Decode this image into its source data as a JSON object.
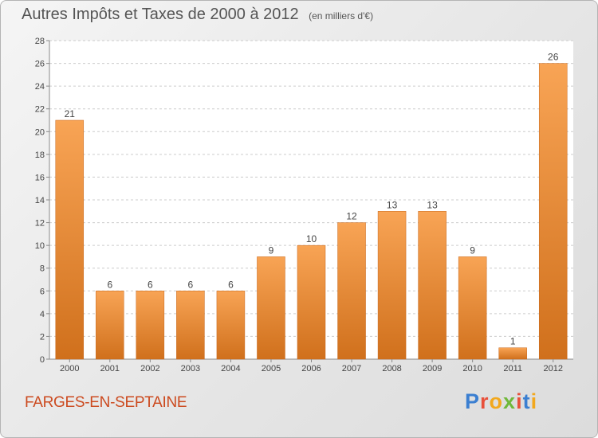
{
  "header": {
    "title": "Autres Impôts et Taxes de 2000 à 2012",
    "subtitle": "(en milliers d'€)"
  },
  "footer": {
    "location": "FARGES-EN-SEPTAINE",
    "brand_letters": [
      "P",
      "r",
      "o",
      "x",
      "i",
      "t",
      "i"
    ],
    "brand_colors": [
      "#3b7fd1",
      "#e8503a",
      "#f2a81d",
      "#6fb83b",
      "#e8503a",
      "#3b7fd1",
      "#f2a81d"
    ]
  },
  "chart_data": {
    "type": "bar",
    "categories": [
      "2000",
      "2001",
      "2002",
      "2003",
      "2004",
      "2005",
      "2006",
      "2007",
      "2008",
      "2009",
      "2010",
      "2011",
      "2012"
    ],
    "values": [
      21,
      6,
      6,
      6,
      6,
      9,
      10,
      12,
      13,
      13,
      9,
      1,
      26
    ],
    "title": "Autres Impôts et Taxes de 2000 à 2012",
    "subtitle": "(en milliers d'€)",
    "xlabel": "",
    "ylabel": "",
    "ylim": [
      0,
      28
    ],
    "yticks": [
      0,
      2,
      4,
      6,
      8,
      10,
      12,
      14,
      16,
      18,
      20,
      22,
      24,
      26,
      28
    ],
    "grid": "horizontal dashed",
    "legend": "none",
    "colors": {
      "bar_light": "#f8a455",
      "bar_dark": "#d0701c",
      "plot_bg": "#ffffff"
    }
  }
}
